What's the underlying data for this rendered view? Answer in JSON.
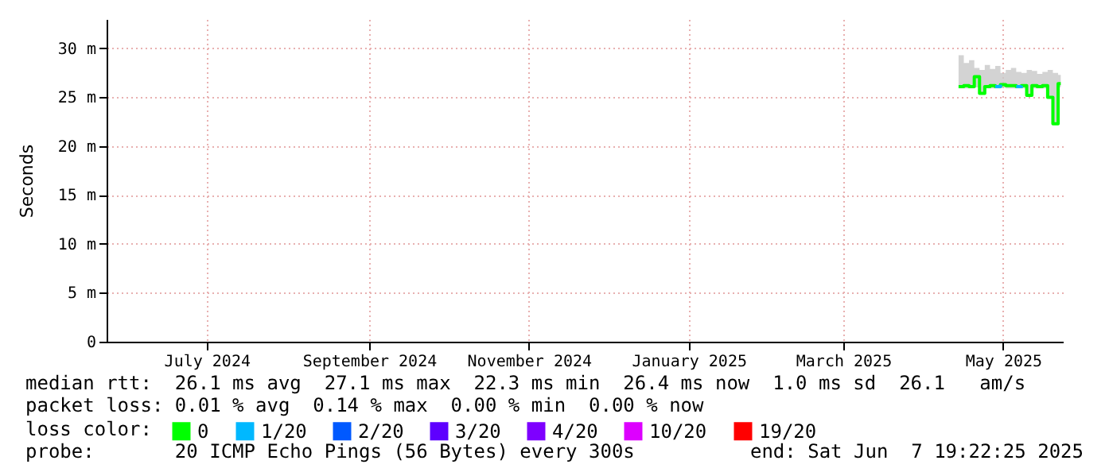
{
  "chart_data": {
    "type": "step",
    "ylabel": "Seconds",
    "legend_title": "loss color:",
    "legend": "bottom",
    "grid": true,
    "x": [
      "2025-04-29",
      "2025-05-01",
      "2025-05-03",
      "2025-05-05",
      "2025-05-07",
      "2025-05-09",
      "2025-05-11",
      "2025-05-13",
      "2025-05-15",
      "2025-05-17",
      "2025-05-19",
      "2025-05-21",
      "2025-05-23",
      "2025-05-25",
      "2025-05-27",
      "2025-05-29",
      "2025-05-31",
      "2025-06-02",
      "2025-06-04",
      "2025-06-06",
      "2025-06-07"
    ],
    "series": [
      {
        "name": "0",
        "color": "#00ff00",
        "values": [
          26.1,
          26.2,
          26.1,
          27.1,
          25.4,
          26.1,
          26.2,
          26.1,
          26.3,
          26.2,
          26.2,
          26.1,
          26.2,
          25.2,
          26.2,
          26.1,
          26.2,
          25.0,
          22.3,
          26.4,
          26.4
        ],
        "lower": [
          25.9,
          25.9,
          25.9,
          26.0,
          25.4,
          25.9,
          25.9,
          25.9,
          26.0,
          25.9,
          25.9,
          25.9,
          25.9,
          25.2,
          25.9,
          25.9,
          25.9,
          25.0,
          22.3,
          26.0,
          26.0
        ],
        "upper": [
          29.3,
          28.5,
          28.8,
          28.0,
          27.8,
          28.3,
          27.9,
          28.2,
          27.5,
          27.8,
          28.0,
          27.6,
          27.5,
          27.8,
          27.7,
          27.4,
          27.6,
          27.8,
          27.5,
          27.3,
          27.3
        ]
      },
      {
        "name": "1/20",
        "color": "#00b8ff",
        "values": [
          null,
          null,
          null,
          null,
          null,
          null,
          null,
          26.1,
          26.3,
          null,
          null,
          26.1,
          26.2,
          null,
          null,
          null,
          null,
          null,
          null,
          null,
          null
        ]
      },
      {
        "name": "2/20",
        "color": "#0059ff",
        "values": [
          null,
          null,
          null,
          null,
          null,
          null,
          null,
          null,
          null,
          null,
          null,
          null,
          null,
          null,
          null,
          null,
          null,
          null,
          null,
          null,
          null
        ]
      },
      {
        "name": "3/20",
        "color": "#5e00ff",
        "values": [
          null,
          null,
          null,
          null,
          null,
          null,
          null,
          null,
          null,
          null,
          null,
          null,
          null,
          null,
          null,
          null,
          null,
          null,
          null,
          null,
          null
        ]
      },
      {
        "name": "4/20",
        "color": "#7e00ff",
        "values": [
          null,
          null,
          null,
          null,
          null,
          null,
          null,
          null,
          null,
          null,
          null,
          null,
          null,
          null,
          null,
          null,
          null,
          null,
          null,
          null,
          null
        ]
      },
      {
        "name": "10/20",
        "color": "#dd00ff",
        "values": [
          null,
          null,
          null,
          null,
          null,
          null,
          null,
          null,
          null,
          null,
          null,
          null,
          null,
          null,
          null,
          null,
          null,
          null,
          null,
          null,
          null
        ]
      },
      {
        "name": "19/20",
        "color": "#ff0000",
        "values": [
          null,
          null,
          null,
          null,
          null,
          null,
          null,
          null,
          null,
          null,
          null,
          null,
          null,
          null,
          null,
          null,
          null,
          null,
          null,
          null,
          null
        ]
      }
    ],
    "xlim": [
      "2024-06-07T19:22",
      "2025-06-07T19:22"
    ],
    "xticks": [
      {
        "value": "2024-07-16",
        "label": "July 2024"
      },
      {
        "value": "2024-09-16",
        "label": "September 2024"
      },
      {
        "value": "2024-11-16",
        "label": "November 2024"
      },
      {
        "value": "2025-01-16",
        "label": "January 2025"
      },
      {
        "value": "2025-03-16",
        "label": "March 2025"
      },
      {
        "value": "2025-05-16",
        "label": "May 2025"
      }
    ],
    "ylim": [
      0,
      33
    ],
    "yticks": [
      0,
      {
        "value": 5,
        "label": "5 m"
      },
      {
        "value": 10,
        "label": "10 m"
      },
      {
        "value": 15,
        "label": "15 m"
      },
      {
        "value": 20,
        "label": "20 m"
      },
      {
        "value": 25,
        "label": "25 m"
      },
      {
        "value": 30,
        "label": "30 m"
      }
    ],
    "annotations": [
      "median rtt:  26.1 ms avg  27.1 ms max  22.3 ms min  26.4 ms now  1.0 ms sd  26.1   am/s",
      "packet loss: 0.01 % avg  0.14 % max  0.00 % min  0.00 % now",
      "probe:       20 ICMP Echo Pings (56 Bytes) every 300s",
      "end: Sat Jun  7 19:22:25 2025"
    ]
  }
}
